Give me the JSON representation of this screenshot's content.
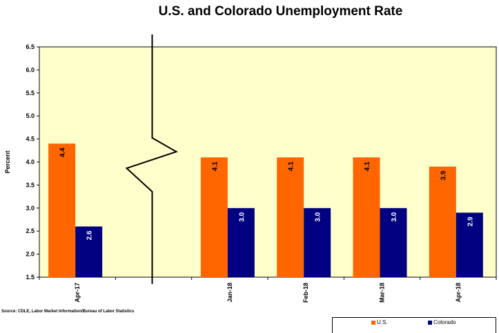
{
  "chart_data": {
    "type": "bar",
    "title": "U.S. and Colorado Unemployment Rate",
    "xlabel": "",
    "ylabel": "Percent",
    "ylim": [
      1.5,
      6.5
    ],
    "yticks": [
      "1.5",
      "2.0",
      "2.5",
      "3.0",
      "3.5",
      "4.0",
      "4.5",
      "5.0",
      "5.5",
      "6.0",
      "6.5"
    ],
    "categories": [
      "Apr-17",
      "",
      "Jan-18",
      "Feb-18",
      "Mar-18",
      "Apr-18"
    ],
    "series": [
      {
        "name": "U.S.",
        "color": "#FF6600",
        "values": [
          4.4,
          null,
          4.1,
          4.1,
          4.1,
          3.9
        ],
        "labels": [
          "4.4",
          "",
          "4.1",
          "4.1",
          "4.1",
          "3.9"
        ]
      },
      {
        "name": "Colorado",
        "color": "#000080",
        "values": [
          2.6,
          null,
          3.0,
          3.0,
          3.0,
          2.9
        ],
        "labels": [
          "2.6",
          "",
          "3.0",
          "3.0",
          "3.0",
          "2.9"
        ]
      }
    ],
    "plot_background": "#FFFFCC",
    "axis_break_after_category": 0,
    "legend_position": "bottom-right",
    "grid": false
  },
  "source": "Source: CDLE, Labor Market Information/Bureau of Labor Statistics"
}
